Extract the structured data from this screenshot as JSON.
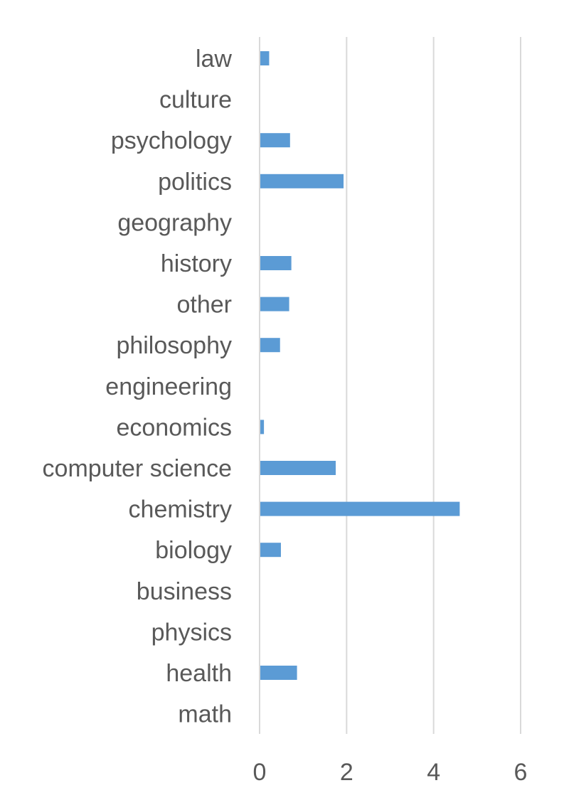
{
  "chart_data": {
    "type": "bar",
    "orientation": "horizontal",
    "categories": [
      "law",
      "culture",
      "psychology",
      "politics",
      "geography",
      "history",
      "other",
      "philosophy",
      "engineering",
      "economics",
      "computer science",
      "chemistry",
      "biology",
      "business",
      "physics",
      "health",
      "math"
    ],
    "series": [
      {
        "values": [
          0.22,
          0,
          0.7,
          1.93,
          0,
          0.73,
          0.68,
          0.47,
          0,
          0.1,
          1.75,
          4.6,
          0.49,
          0,
          0,
          0.86,
          0
        ],
        "color": "#5b9bd5"
      }
    ],
    "xticks": [
      "0",
      "2",
      "4",
      "6"
    ],
    "xlim": [
      0,
      6
    ],
    "title": "",
    "xlabel": "",
    "ylabel": "",
    "grid": "vertical",
    "legend": "none"
  }
}
